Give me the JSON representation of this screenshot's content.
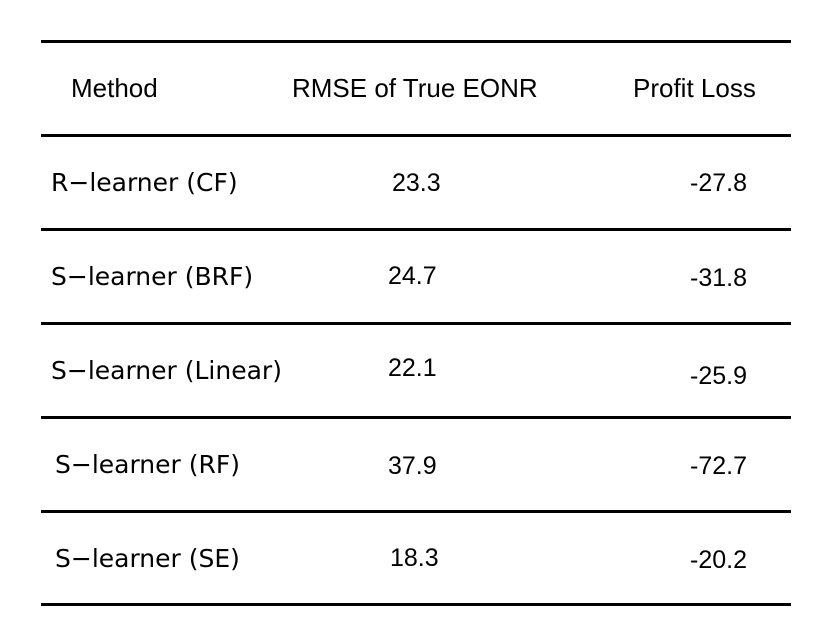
{
  "table": {
    "headers": {
      "method": "Method",
      "rmse": "RMSE of True EONR",
      "profit": "Profit Loss"
    },
    "rows": [
      {
        "method": "R−learner (CF)",
        "rmse": "23.3",
        "profit": "-27.8"
      },
      {
        "method": "S−learner (BRF)",
        "rmse": "24.7",
        "profit": "-31.8"
      },
      {
        "method": "S−learner (Linear)",
        "rmse": "22.1",
        "profit": "-25.9"
      },
      {
        "method": "S−learner (RF)",
        "rmse": "37.9",
        "profit": "-72.7"
      },
      {
        "method": "S−learner (SE)",
        "rmse": "18.3",
        "profit": "-20.2"
      }
    ]
  }
}
